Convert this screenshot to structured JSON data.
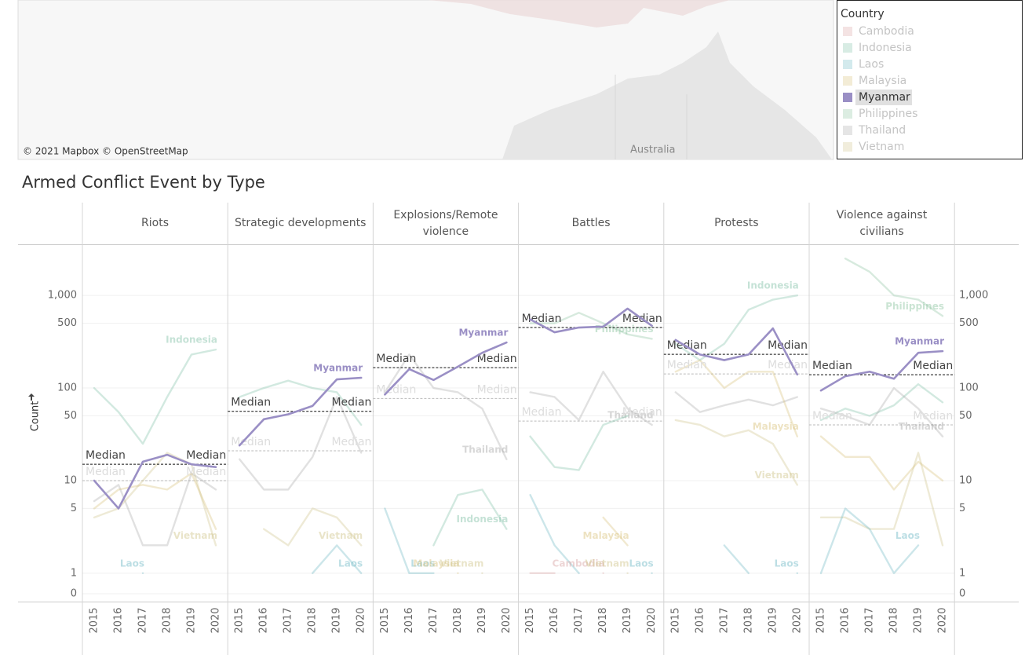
{
  "map": {
    "attribution": "© 2021 Mapbox © OpenStreetMap",
    "place_label": "Australia"
  },
  "legend": {
    "title": "Country",
    "highlight": "Myanmar",
    "items": [
      {
        "name": "Cambodia",
        "color": "#d9a3a3"
      },
      {
        "name": "Indonesia",
        "color": "#7fbfa5"
      },
      {
        "name": "Laos",
        "color": "#6cb8c4"
      },
      {
        "name": "Malaysia",
        "color": "#d8c078"
      },
      {
        "name": "Myanmar",
        "color": "#9a8fc5"
      },
      {
        "name": "Philippines",
        "color": "#8cc4a0"
      },
      {
        "name": "Thailand",
        "color": "#a8a8a8"
      },
      {
        "name": "Vietnam",
        "color": "#cfc48a"
      }
    ]
  },
  "chart_data": {
    "type": "line",
    "title": "Armed Conflict Event by Type",
    "y_label": "Count",
    "log_scale": true,
    "grid": true,
    "ylim": [
      0.6,
      3500
    ],
    "yticks": [
      {
        "value": 0,
        "label": "0"
      },
      1,
      5,
      10,
      50,
      100,
      500,
      {
        "value": 1000,
        "label": "1,000"
      }
    ],
    "categories": [
      "2015",
      "2016",
      "2017",
      "2018",
      "2019",
      "2020"
    ],
    "median_label": "Median",
    "panels": [
      {
        "title": "Riots",
        "median": 15,
        "median_all": 10,
        "series": [
          {
            "name": "Indonesia",
            "values": [
              100,
              55,
              25,
              80,
              230,
              260
            ],
            "show_label": true
          },
          {
            "name": "Thailand",
            "values": [
              6,
              9,
              2,
              2,
              12,
              8
            ]
          },
          {
            "name": "Malaysia",
            "values": [
              5,
              8,
              9,
              8,
              12,
              3
            ]
          },
          {
            "name": "Laos",
            "values": [
              null,
              null,
              1,
              null,
              null,
              null
            ],
            "show_label": true
          },
          {
            "name": "Vietnam",
            "values": [
              4,
              5,
              10,
              20,
              15,
              2
            ],
            "show_label": true
          },
          {
            "name": "Myanmar",
            "values": [
              10,
              5,
              16,
              19,
              15,
              14
            ]
          }
        ]
      },
      {
        "title": "Strategic developments",
        "median": 56,
        "median_all": 21,
        "series": [
          {
            "name": "Indonesia",
            "values": [
              80,
              100,
              120,
              100,
              90,
              40
            ]
          },
          {
            "name": "Thailand",
            "values": [
              17,
              8,
              8,
              18,
              80,
              20
            ]
          },
          {
            "name": "Vietnam",
            "values": [
              null,
              3,
              2,
              5,
              4,
              2
            ],
            "show_label": true
          },
          {
            "name": "Laos",
            "values": [
              null,
              null,
              null,
              1,
              2,
              1
            ],
            "show_label": true
          },
          {
            "name": "Myanmar",
            "values": [
              24,
              46,
              52,
              64,
              124,
              129
            ],
            "show_label": true
          }
        ]
      },
      {
        "title": "Explosions/Remote violence",
        "median": 166,
        "median_all": 77,
        "series": [
          {
            "name": "Thailand",
            "values": [
              90,
              230,
              100,
              90,
              60,
              17
            ],
            "show_label": true
          },
          {
            "name": "Indonesia",
            "values": [
              null,
              null,
              2,
              7,
              8,
              3
            ],
            "show_label": true
          },
          {
            "name": "Laos",
            "values": [
              5,
              1,
              1,
              null,
              null,
              null
            ],
            "show_label": true
          },
          {
            "name": "Malaysia",
            "values": [
              null,
              null,
              null,
              1,
              null,
              null
            ],
            "show_label": true
          },
          {
            "name": "Vietnam",
            "values": [
              null,
              null,
              null,
              null,
              1,
              null
            ],
            "show_label": true
          },
          {
            "name": "Myanmar",
            "values": [
              85,
              160,
              122,
              170,
              240,
              310
            ],
            "show_label": true
          }
        ]
      },
      {
        "title": "Battles",
        "median": 450,
        "median_all": 44,
        "series": [
          {
            "name": "Philippines",
            "values": [
              500,
              500,
              650,
              500,
              380,
              340
            ],
            "show_label": true
          },
          {
            "name": "Thailand",
            "values": [
              90,
              80,
              45,
              150,
              60,
              40
            ],
            "show_label": true
          },
          {
            "name": "Indonesia",
            "values": [
              30,
              14,
              13,
              40,
              50,
              null
            ]
          },
          {
            "name": "Laos",
            "values": [
              7,
              2,
              1,
              null,
              null,
              1
            ],
            "show_label": true
          },
          {
            "name": "Malaysia",
            "values": [
              null,
              null,
              null,
              4,
              2,
              null
            ],
            "show_label": true
          },
          {
            "name": "Cambodia",
            "values": [
              1,
              1,
              null,
              1,
              null,
              null
            ],
            "show_label": true
          },
          {
            "name": "Vietnam",
            "values": [
              null,
              null,
              null,
              null,
              1,
              null
            ],
            "show_label": true
          },
          {
            "name": "Myanmar",
            "values": [
              550,
              400,
              450,
              460,
              720,
              470
            ]
          }
        ]
      },
      {
        "title": "Protests",
        "median": 231,
        "median_all": 142,
        "series": [
          {
            "name": "Indonesia",
            "values": [
              300,
              200,
              300,
              700,
              900,
              1000
            ],
            "show_label": true
          },
          {
            "name": "Thailand",
            "values": [
              90,
              55,
              65,
              75,
              65,
              80
            ]
          },
          {
            "name": "Malaysia",
            "values": [
              150,
              200,
              100,
              150,
              150,
              30
            ],
            "show_label": true
          },
          {
            "name": "Vietnam",
            "values": [
              45,
              40,
              30,
              35,
              25,
              9
            ],
            "show_label": true
          },
          {
            "name": "Laos",
            "values": [
              null,
              null,
              2,
              1,
              null,
              1
            ],
            "show_label": true
          },
          {
            "name": "Myanmar",
            "values": [
              330,
              230,
              200,
              230,
              440,
              140
            ]
          }
        ]
      },
      {
        "title": "Violence against civilians",
        "median": 139,
        "median_all": 40,
        "series": [
          {
            "name": "Philippines",
            "values": [
              null,
              2500,
              1800,
              1000,
              900,
              600
            ],
            "show_label": true
          },
          {
            "name": "Indonesia",
            "values": [
              45,
              60,
              50,
              65,
              110,
              70
            ]
          },
          {
            "name": "Thailand",
            "values": [
              60,
              50,
              40,
              100,
              60,
              30
            ],
            "show_label": true
          },
          {
            "name": "Malaysia",
            "values": [
              30,
              18,
              18,
              8,
              16,
              10
            ]
          },
          {
            "name": "Vietnam",
            "values": [
              4,
              4,
              3,
              3,
              20,
              2
            ]
          },
          {
            "name": "Laos",
            "values": [
              1,
              5,
              3,
              1,
              2,
              null
            ],
            "show_label": true
          },
          {
            "name": "Myanmar",
            "values": [
              94,
              134,
              150,
              126,
              240,
              250
            ],
            "show_label": true
          }
        ]
      }
    ]
  }
}
